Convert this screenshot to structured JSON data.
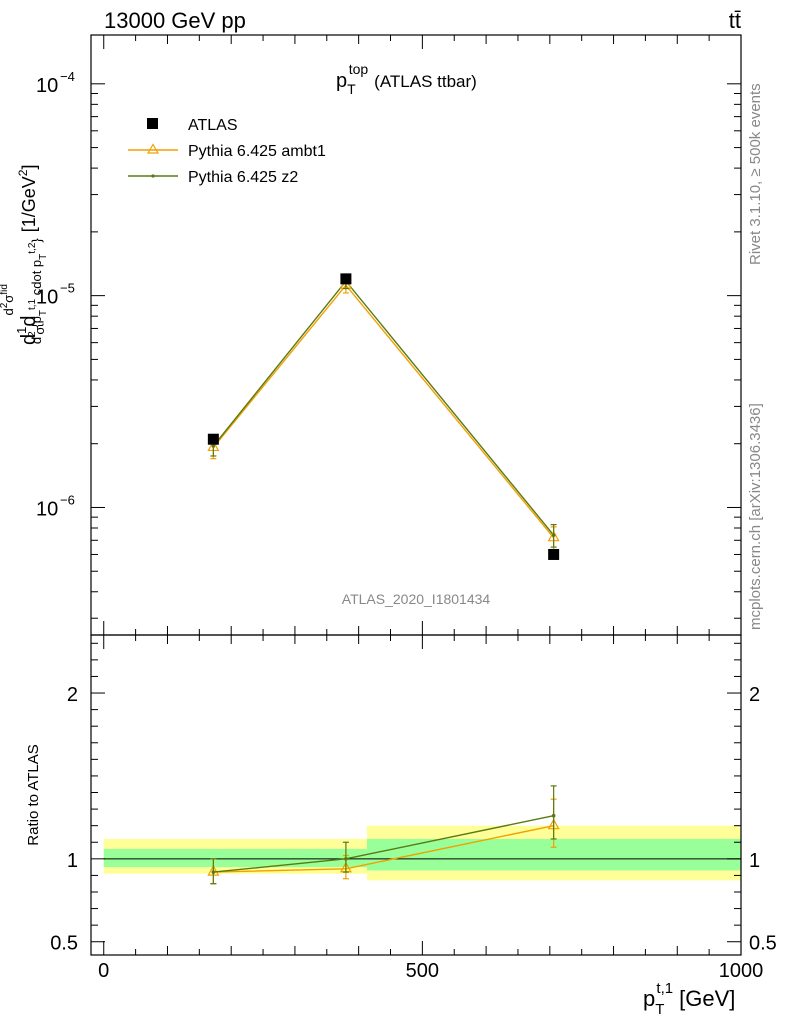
{
  "header": {
    "left": "13000 GeV pp",
    "right": "tt̄"
  },
  "side_text": {
    "rivet": "Rivet 3.1.10, ≥ 500k events",
    "mcplots": "mcplots.cern.ch [arXiv:1306.3436]"
  },
  "colors": {
    "data": "#000000",
    "ambt1": "#f0a000",
    "z2": "#5a7a10",
    "band_inner": "#99ff99",
    "band_outer": "#ffff99"
  },
  "chart_data": [
    {
      "type": "line",
      "title": "p_T^top (ATLAS ttbar)",
      "title_main": "p",
      "title_sup": "top",
      "title_sub": "T",
      "title_rest": "(ATLAS ttbar)",
      "watermark": "ATLAS_2020_I1801434",
      "ylabel": "d 1/σ d²σ^fid / d² {p_T^t,1 cdot p_T^t,2} [1/GeV²]",
      "ylabel_unit": "[1/GeV",
      "y_scale": "log",
      "ylim": [
        2.5e-07,
        0.00017
      ],
      "xlim": [
        -20,
        1000
      ],
      "yticks": [
        {
          "v": 1e-06,
          "label": "10"
        },
        {
          "v": 1e-05,
          "label": "10"
        },
        {
          "v": 0.0001,
          "label": "10"
        }
      ],
      "ytick_exps": [
        "−6",
        "−5",
        "−4"
      ],
      "legend": {
        "position": "top-left",
        "entries": [
          "ATLAS",
          "Pythia 6.425 ambt1",
          "Pythia 6.425 z2"
        ]
      },
      "series": [
        {
          "name": "ATLAS",
          "kind": "data",
          "x": [
            172,
            380,
            706
          ],
          "y": [
            2.1e-06,
            1.2e-05,
            6e-07
          ]
        },
        {
          "name": "Pythia 6.425 ambt1",
          "kind": "triangle",
          "x": [
            172,
            380,
            706
          ],
          "y": [
            1.92e-06,
            1.12e-05,
            7.2e-07
          ],
          "yerr_lo": [
            1.7e-06,
            1.03e-05,
            6.3e-07
          ],
          "yerr_hi": [
            2.12e-06,
            1.22e-05,
            8.1e-07
          ]
        },
        {
          "name": "Pythia 6.425 z2",
          "kind": "dot",
          "x": [
            172,
            380,
            706
          ],
          "y": [
            1.95e-06,
            1.17e-05,
            7.4e-07
          ],
          "yerr_lo": [
            1.75e-06,
            1.08e-05,
            6.5e-07
          ],
          "yerr_hi": [
            2.15e-06,
            1.26e-05,
            8.3e-07
          ]
        }
      ]
    },
    {
      "type": "line",
      "ylabel": "Ratio to ATLAS",
      "xlabel": "p_T^t,1 [GeV]",
      "xlabel_main": "p",
      "xlabel_sup": "t,1",
      "xlabel_sub": "T",
      "xlabel_rest": "[GeV]",
      "ylim": [
        0.42,
        2.35
      ],
      "xlim": [
        -20,
        1000
      ],
      "yticks": [
        {
          "v": 0.5,
          "label": "0.5"
        },
        {
          "v": 1,
          "label": "1"
        },
        {
          "v": 2,
          "label": "2"
        }
      ],
      "xticks": [
        {
          "v": 0,
          "label": "0"
        },
        {
          "v": 500,
          "label": "500"
        },
        {
          "v": 1000,
          "label": "1000"
        }
      ],
      "bands": [
        {
          "x0": 0,
          "x1": 413,
          "inner": [
            0.95,
            1.06
          ],
          "outer": [
            0.91,
            1.12
          ]
        },
        {
          "x0": 413,
          "x1": 1000,
          "inner": [
            0.93,
            1.12
          ],
          "outer": [
            0.87,
            1.2
          ]
        }
      ],
      "series": [
        {
          "name": "Pythia 6.425 ambt1",
          "kind": "triangle",
          "x": [
            172,
            380,
            706
          ],
          "y": [
            0.92,
            0.94,
            1.2
          ],
          "yerr_lo": [
            0.85,
            0.88,
            1.07
          ],
          "yerr_hi": [
            1.0,
            1.02,
            1.36
          ]
        },
        {
          "name": "Pythia 6.425 z2",
          "kind": "dot",
          "x": [
            172,
            380,
            706
          ],
          "y": [
            0.92,
            1.0,
            1.26
          ],
          "yerr_lo": [
            0.85,
            0.92,
            1.12
          ],
          "yerr_hi": [
            1.0,
            1.1,
            1.44
          ]
        }
      ]
    }
  ]
}
